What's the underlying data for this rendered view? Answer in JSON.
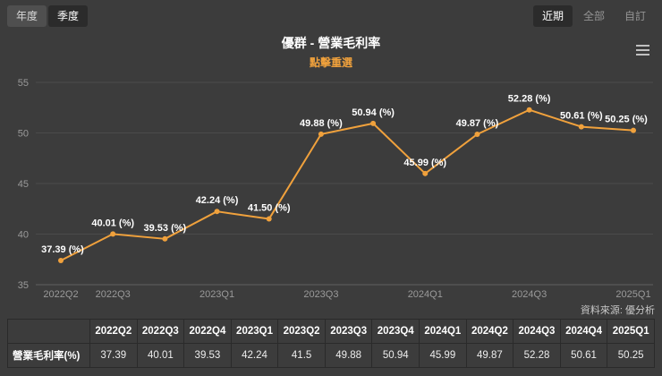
{
  "controls": {
    "period_buttons": [
      {
        "label": "年度",
        "selected": false
      },
      {
        "label": "季度",
        "selected": true
      }
    ],
    "range_buttons": [
      {
        "label": "近期",
        "selected": true
      },
      {
        "label": "全部",
        "selected": false
      },
      {
        "label": "自訂",
        "selected": false
      }
    ]
  },
  "header": {
    "title": "優群 - 營業毛利率",
    "subtitle": "點擊重選"
  },
  "icons": {
    "chart_menu": "hamburger-menu-icon"
  },
  "chart_data": {
    "type": "line",
    "title": "優群 - 營業毛利率",
    "categories": [
      "2022Q2",
      "2022Q3",
      "2022Q4",
      "2023Q1",
      "2023Q2",
      "2023Q3",
      "2023Q4",
      "2024Q1",
      "2024Q2",
      "2024Q3",
      "2024Q4",
      "2025Q1"
    ],
    "values": [
      37.39,
      40.01,
      39.53,
      42.24,
      41.5,
      49.88,
      50.94,
      45.99,
      49.87,
      52.28,
      50.61,
      50.25
    ],
    "point_labels": [
      "37.39 (%)",
      "40.01 (%)",
      "39.53 (%)",
      "42.24 (%)",
      "41.50 (%)",
      "49.88 (%)",
      "50.94 (%)",
      "45.99 (%)",
      "49.87 (%)",
      "52.28 (%)",
      "50.61 (%)",
      "50.25 (%)"
    ],
    "x_tick_indices": [
      0,
      1,
      3,
      5,
      7,
      9,
      11
    ],
    "ylim": [
      35,
      55
    ],
    "yticks": [
      35,
      40,
      45,
      50,
      55
    ],
    "ylabel": "",
    "xlabel": "",
    "grid": true,
    "legend": "none",
    "line_color": "#f0a13c",
    "label_color": "#ffffff",
    "axis_color": "#9a9a9a",
    "grid_color": "#4b4b4b"
  },
  "source": "資料來源: 優分析",
  "table": {
    "row_header": "營業毛利率(%)",
    "columns": [
      "2022Q2",
      "2022Q3",
      "2022Q4",
      "2023Q1",
      "2023Q2",
      "2023Q3",
      "2023Q4",
      "2024Q1",
      "2024Q2",
      "2024Q3",
      "2024Q4",
      "2025Q1"
    ],
    "values": [
      "37.39",
      "40.01",
      "39.53",
      "42.24",
      "41.5",
      "49.88",
      "50.94",
      "45.99",
      "49.87",
      "52.28",
      "50.61",
      "50.25"
    ]
  }
}
